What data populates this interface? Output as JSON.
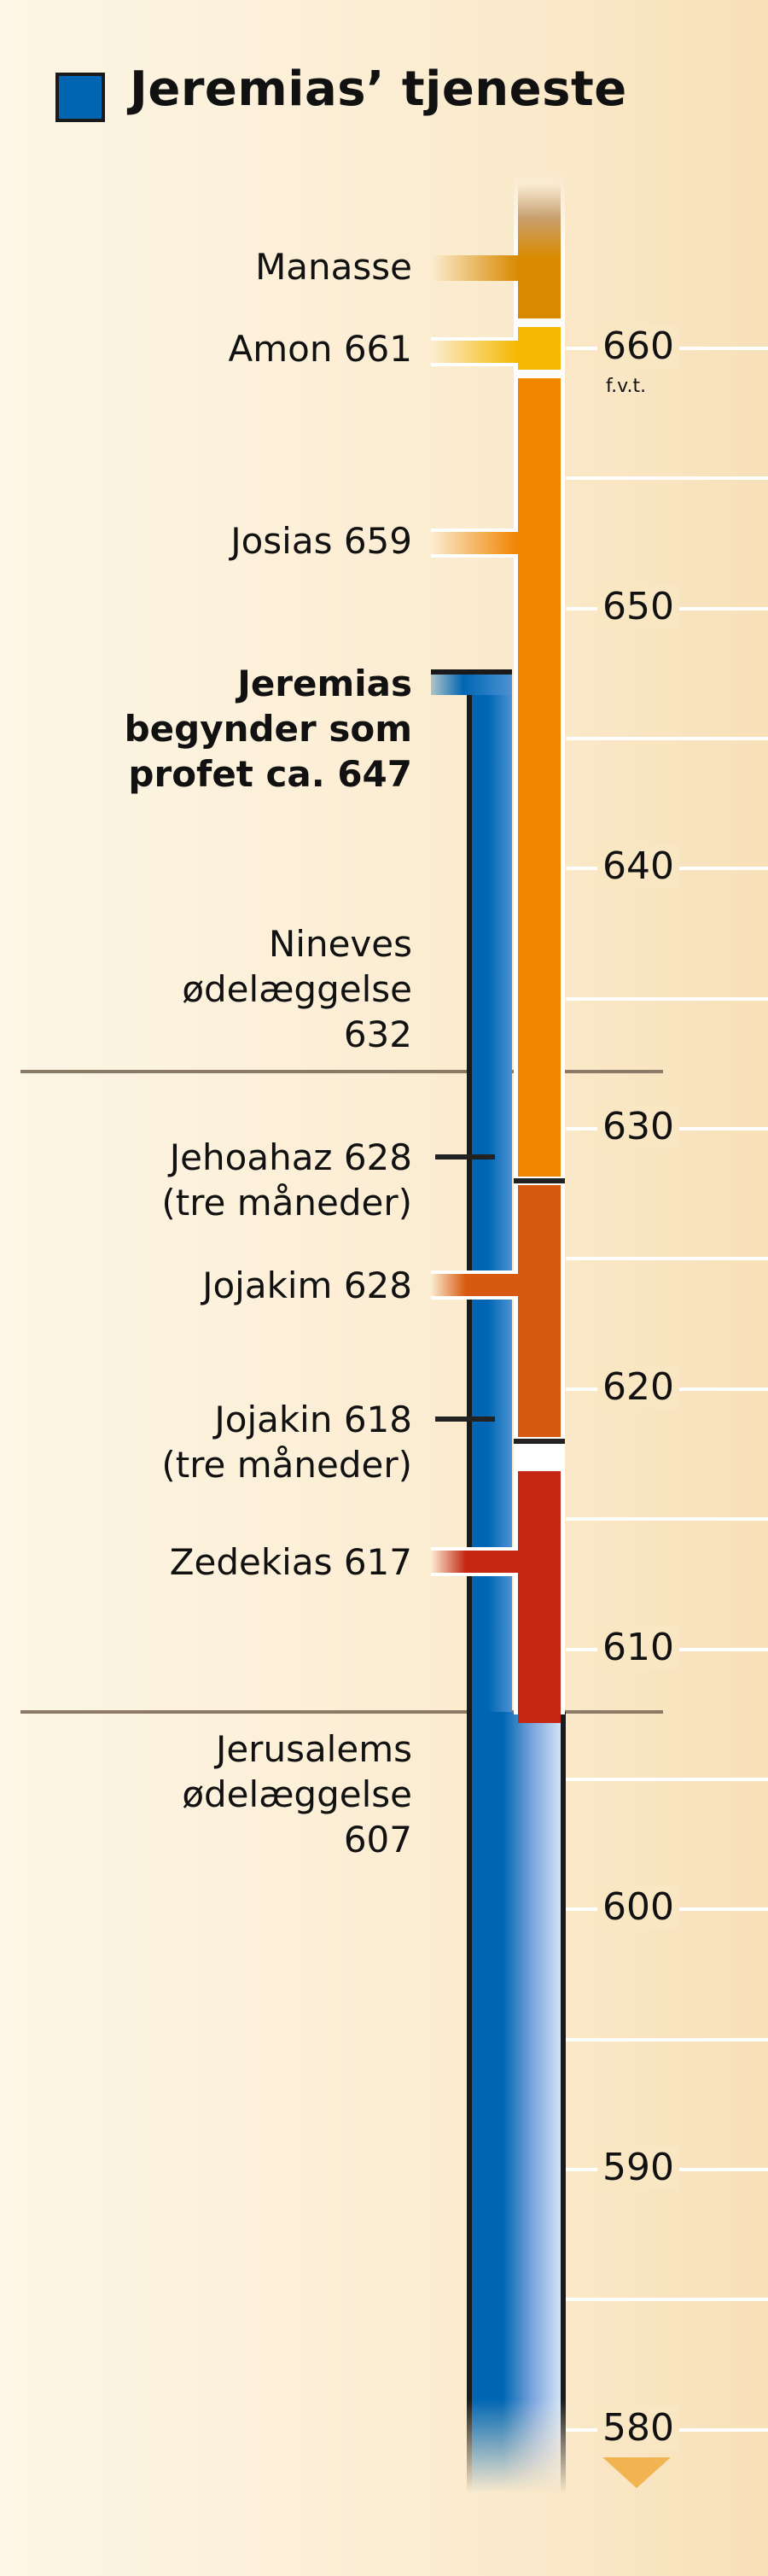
{
  "title": "Jeremias’ tjeneste",
  "legend_color": "#0066b3",
  "axis": {
    "unit": "f.v.t.",
    "labels": [
      "660",
      "650",
      "640",
      "630",
      "620",
      "610",
      "600",
      "590",
      "580"
    ],
    "range": [
      660,
      580
    ],
    "minor_step": 5
  },
  "reigns": [
    {
      "label": "Manasse",
      "start": 668,
      "end": 661,
      "color": "#d98a00"
    },
    {
      "label": "Amon 661",
      "start": 661,
      "end": 659,
      "color": "#f5b800"
    },
    {
      "label": "Josias 659",
      "start": 659,
      "end": 628,
      "color": "#f08500"
    },
    {
      "label": "Jehoahaz 628 (tre måneder)",
      "start": 628,
      "end": 628,
      "color": "#222222"
    },
    {
      "label": "Jojakim 628",
      "start": 628,
      "end": 618,
      "color": "#d85a10"
    },
    {
      "label": "Jojakin 618 (tre måneder)",
      "start": 618,
      "end": 618,
      "color": "#222222"
    },
    {
      "label": "Zedekias 617",
      "start": 617,
      "end": 607,
      "color": "#c42814"
    }
  ],
  "jeremiah": {
    "start": 647,
    "color": "#0070b8"
  },
  "labels": {
    "manasse": "Manasse",
    "amon": "Amon 661",
    "josias": "Josias 659",
    "jeremias": [
      "Jeremias",
      "begynder som",
      "profet ca. 647"
    ],
    "nineve": [
      "Nineves",
      "ødelæggelse",
      "632"
    ],
    "jehoahaz": [
      "Jehoahaz 628",
      "(tre måneder)"
    ],
    "jojakim": "Jojakim 628",
    "jojakin": [
      "Jojakin 618",
      "(tre måneder)"
    ],
    "zedekias": "Zedekias 617",
    "jerusalem": [
      "Jerusalems",
      "ødelæggelse",
      "607"
    ]
  }
}
